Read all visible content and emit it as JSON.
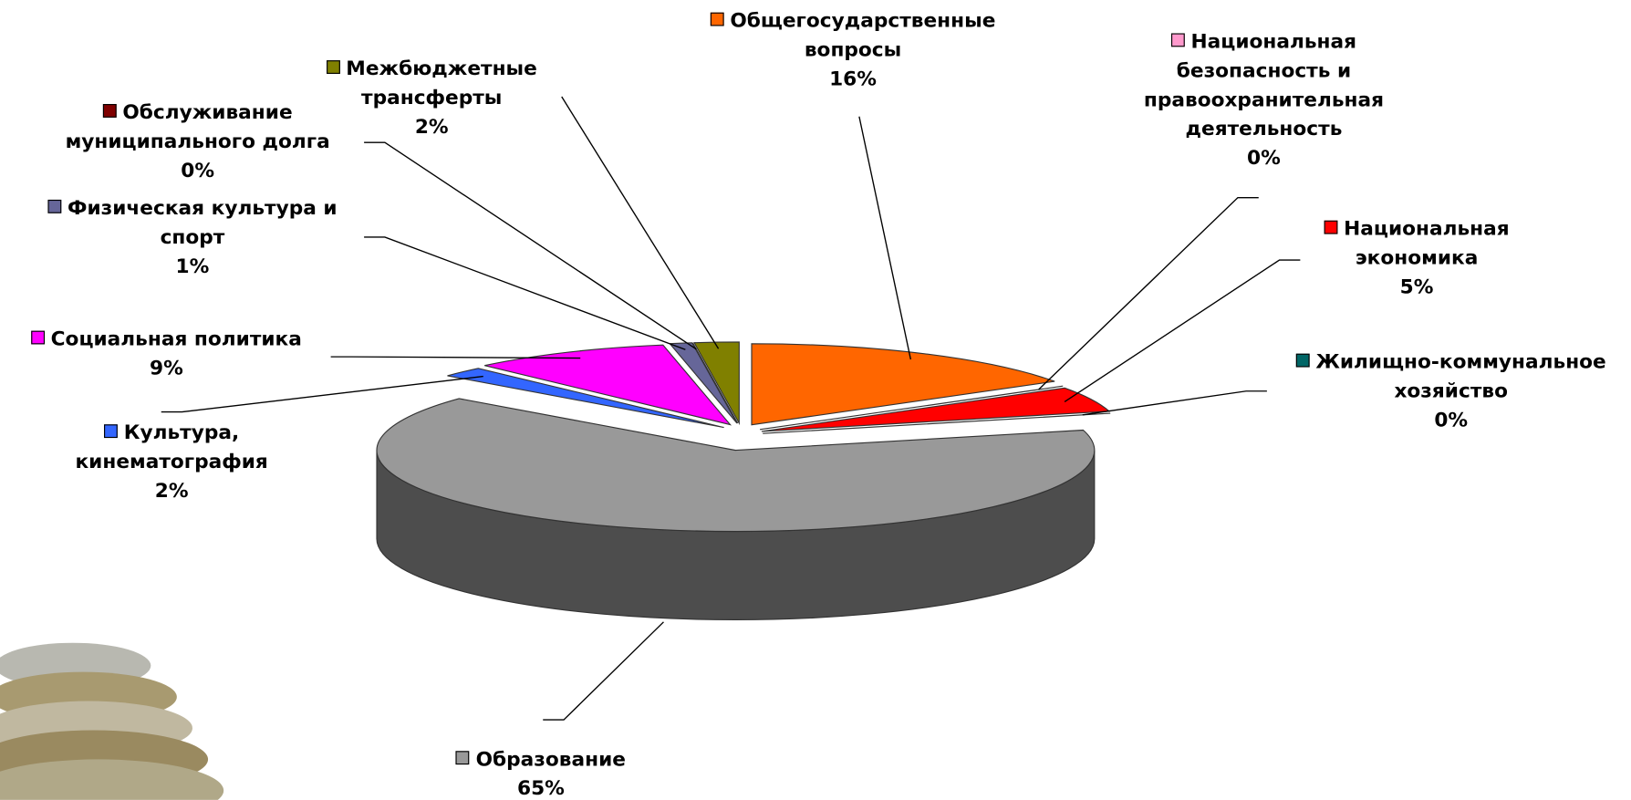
{
  "chart_data": {
    "type": "pie",
    "categories": [
      "Общегосударственные вопросы",
      "Национальная безопасность и правоохранительная деятельность",
      "Национальная экономика",
      "Жилищно-коммунальное хозяйство",
      "Образование",
      "Культура, кинематография",
      "Социальная политика",
      "Физическая культура и спорт",
      "Обслуживание муниципального долга",
      "Межбюджетные трансферты"
    ],
    "values": [
      16,
      0,
      5,
      0,
      65,
      2,
      9,
      1,
      0,
      2
    ],
    "value_labels": [
      "16%",
      "0%",
      "5%",
      "0%",
      "65%",
      "2%",
      "9%",
      "1%",
      "0%",
      "2%"
    ],
    "colors": [
      "#ff6600",
      "#ff99cc",
      "#ff0000",
      "#006666",
      "#999999",
      "#3366ff",
      "#ff00ff",
      "#666699",
      "#800000",
      "#808000"
    ]
  }
}
